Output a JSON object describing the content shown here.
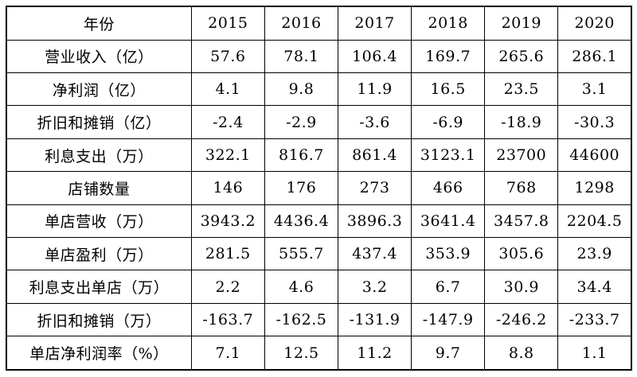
{
  "table": {
    "header": {
      "label": "年份",
      "years": [
        "2015",
        "2016",
        "2017",
        "2018",
        "2019",
        "2020"
      ]
    },
    "rows": [
      {
        "label": "营业收入（亿）",
        "values": [
          "57.6",
          "78.1",
          "106.4",
          "169.7",
          "265.6",
          "286.1"
        ]
      },
      {
        "label": "净利润（亿）",
        "values": [
          "4.1",
          "9.8",
          "11.9",
          "16.5",
          "23.5",
          "3.1"
        ]
      },
      {
        "label": "折旧和摊销（亿）",
        "values": [
          "-2.4",
          "-2.9",
          "-3.6",
          "-6.9",
          "-18.9",
          "-30.3"
        ]
      },
      {
        "label": "利息支出（万）",
        "values": [
          "322.1",
          "816.7",
          "861.4",
          "3123.1",
          "23700",
          "44600"
        ]
      },
      {
        "label": "店铺数量",
        "values": [
          "146",
          "176",
          "273",
          "466",
          "768",
          "1298"
        ]
      },
      {
        "label": "单店营收（万）",
        "values": [
          "3943.2",
          "4436.4",
          "3896.3",
          "3641.4",
          "3457.8",
          "2204.5"
        ]
      },
      {
        "label": "单店盈利（万）",
        "values": [
          "281.5",
          "555.7",
          "437.4",
          "353.9",
          "305.6",
          "23.9"
        ]
      },
      {
        "label": "利息支出单店（万）",
        "values": [
          "2.2",
          "4.6",
          "3.2",
          "6.7",
          "30.9",
          "34.4"
        ]
      },
      {
        "label": "折旧和摊销（万）",
        "values": [
          "-163.7",
          "-162.5",
          "-131.9",
          "-147.9",
          "-246.2",
          "-233.7"
        ]
      },
      {
        "label": "单店净利润率（%）",
        "values": [
          "7.1",
          "12.5",
          "11.2",
          "9.7",
          "8.8",
          "1.1"
        ]
      }
    ],
    "colors": {
      "border": "#000000",
      "background": "#ffffff",
      "text": "#000000"
    }
  }
}
